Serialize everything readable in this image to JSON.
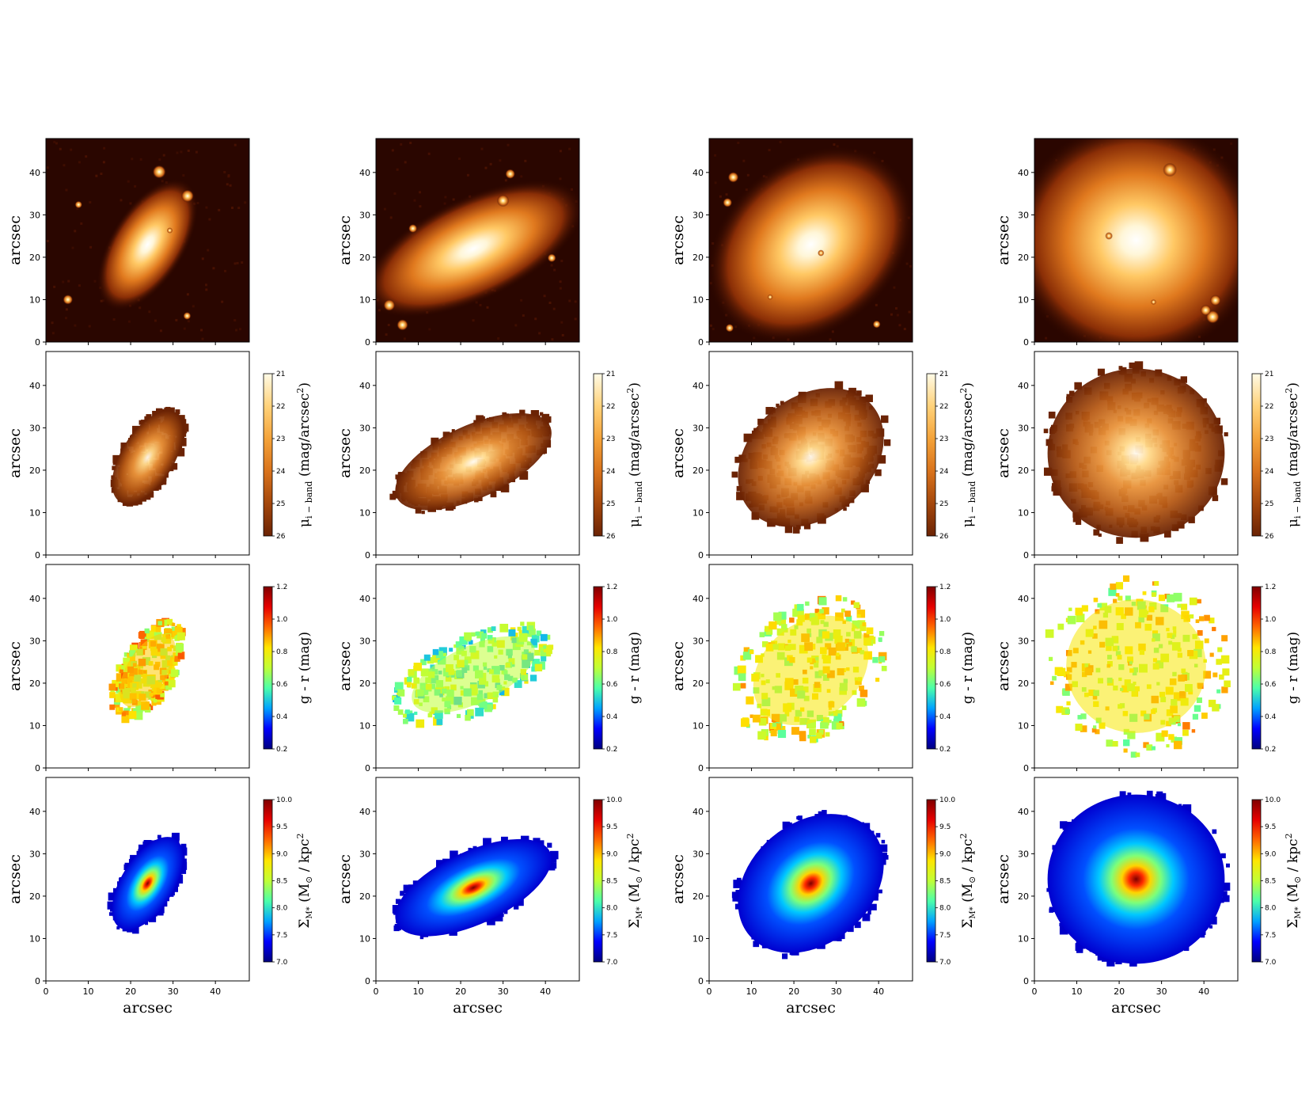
{
  "chart_data": {
    "type": "heatmap",
    "description_rows": [
      "image",
      "surface_brightness",
      "color",
      "stellar_mass_density"
    ],
    "axis": {
      "xlabel": "arcsec",
      "ylabel": "arcsec",
      "xlim": [
        0,
        48
      ],
      "ylim": [
        0,
        48
      ],
      "ticks": [
        0,
        10,
        20,
        30,
        40
      ],
      "tick_labels": [
        "0",
        "10",
        "20",
        "30",
        "40"
      ]
    },
    "colorbars": [
      {
        "row": 1,
        "label_main": "μ",
        "label_sub": "i − band",
        "label_rest": " (mag/arcsec",
        "label_sup": "2",
        "label_end": ")",
        "range": [
          21,
          26
        ],
        "ticks": [
          21,
          22,
          23,
          24,
          25,
          26
        ],
        "tick_labels": [
          "21",
          "22",
          "23",
          "24",
          "25",
          "26"
        ],
        "reversed": true,
        "colormap": "afmhot",
        "stops": [
          "#fffbe6",
          "#ffd27a",
          "#f4a33a",
          "#d9731c",
          "#a4470c",
          "#6b2304"
        ]
      },
      {
        "row": 2,
        "label_main": "g - r (mag)",
        "range": [
          0.2,
          1.2
        ],
        "ticks": [
          0.2,
          0.4,
          0.6,
          0.8,
          1.0,
          1.2
        ],
        "tick_labels": [
          "0.2",
          "0.4",
          "0.6",
          "0.8",
          "1.0",
          "1.2"
        ],
        "reversed": false,
        "colormap": "jet",
        "stops": [
          "#00007f",
          "#0000ff",
          "#00a2ff",
          "#4cffaa",
          "#c0ff36",
          "#ffe500",
          "#ff6a00",
          "#e60000",
          "#7f0000"
        ]
      },
      {
        "row": 3,
        "label_main": "Σ",
        "label_sub": "M*",
        "label_rest": " (M",
        "label_sun": "⊙",
        "label_rest2": " / kpc",
        "label_sup": "2",
        "range": [
          7.0,
          10.0
        ],
        "ticks": [
          7.0,
          7.5,
          8.0,
          8.5,
          9.0,
          9.5,
          10.0
        ],
        "tick_labels": [
          "7.0",
          "7.5",
          "8.0",
          "8.5",
          "9.0",
          "9.5",
          "10.0"
        ],
        "reversed": false,
        "colormap": "jet",
        "stops": [
          "#00007f",
          "#0000ff",
          "#00a2ff",
          "#4cffaa",
          "#c0ff36",
          "#ffe500",
          "#ff6a00",
          "#e60000",
          "#7f0000"
        ]
      }
    ],
    "galaxies": [
      {
        "column": 0,
        "center": [
          24,
          23
        ],
        "semi_major": 13,
        "semi_minor": 6.5,
        "pa_deg": 58,
        "mean_color": 0.8,
        "peak_logM": 9.8
      },
      {
        "column": 1,
        "center": [
          23,
          22
        ],
        "semi_major": 21,
        "semi_minor": 9,
        "pa_deg": 25,
        "mean_color": 0.65,
        "peak_logM": 9.9
      },
      {
        "column": 2,
        "center": [
          24,
          23
        ],
        "semi_major": 20,
        "semi_minor": 15,
        "pa_deg": 40,
        "mean_color": 0.76,
        "peak_logM": 9.9
      },
      {
        "column": 3,
        "center": [
          24,
          24
        ],
        "semi_major": 22,
        "semi_minor": 21,
        "pa_deg": 0,
        "mean_color": 0.76,
        "peak_logM": 10.0
      }
    ]
  }
}
